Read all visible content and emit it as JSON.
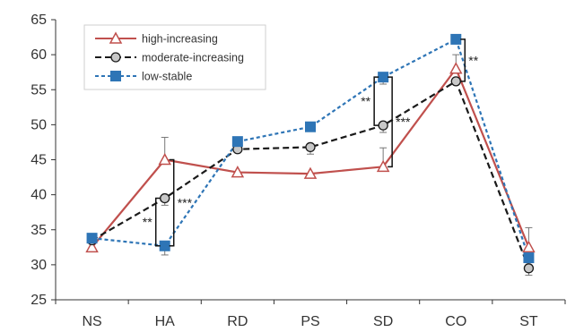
{
  "chart_data": {
    "type": "line",
    "categories": [
      "NS",
      "HA",
      "RD",
      "PS",
      "SD",
      "CO",
      "ST"
    ],
    "ylim": [
      25,
      65
    ],
    "yticks": [
      25,
      30,
      35,
      40,
      45,
      50,
      55,
      60,
      65
    ],
    "grid": false,
    "legend_position": "top-left",
    "series": [
      {
        "name": "high-increasing",
        "values": [
          32.5,
          45.0,
          43.2,
          43.0,
          44.0,
          58.0,
          32.5
        ],
        "error_upper": [
          0,
          3.2,
          0,
          0,
          2.7,
          2.0,
          2.8
        ],
        "color": "#c0504d",
        "marker": "triangle",
        "dash": "solid"
      },
      {
        "name": "moderate-increasing",
        "values": [
          33.5,
          39.5,
          46.5,
          46.8,
          49.9,
          56.2,
          29.5
        ],
        "error_upper": [
          0,
          0,
          0,
          0,
          0,
          0,
          0
        ],
        "error_lower": [
          0,
          1.0,
          0,
          1.0,
          1.0,
          0,
          1.0
        ],
        "color": "#1a1a1a",
        "marker": "circle",
        "dash": "dashed"
      },
      {
        "name": "low-stable",
        "values": [
          33.8,
          32.7,
          47.6,
          49.7,
          56.8,
          62.2,
          31.0
        ],
        "error_lower": [
          0,
          1.3,
          0,
          0,
          1.0,
          0,
          0
        ],
        "color": "#2e75b6",
        "marker": "square",
        "dash": "dotted"
      }
    ],
    "annotations": [
      {
        "text": "**",
        "category": "HA",
        "y_from": 32.7,
        "y_to": 39.5,
        "side": "left"
      },
      {
        "text": "***",
        "category": "HA",
        "y_from": 32.7,
        "y_to": 45.0,
        "side": "right"
      },
      {
        "text": "**",
        "category": "SD",
        "y_from": 49.9,
        "y_to": 56.8,
        "side": "left"
      },
      {
        "text": "***",
        "category": "SD",
        "y_from": 44.0,
        "y_to": 56.8,
        "side": "right"
      },
      {
        "text": "**",
        "category": "CO",
        "y_from": 56.2,
        "y_to": 62.2,
        "side": "right"
      }
    ]
  }
}
